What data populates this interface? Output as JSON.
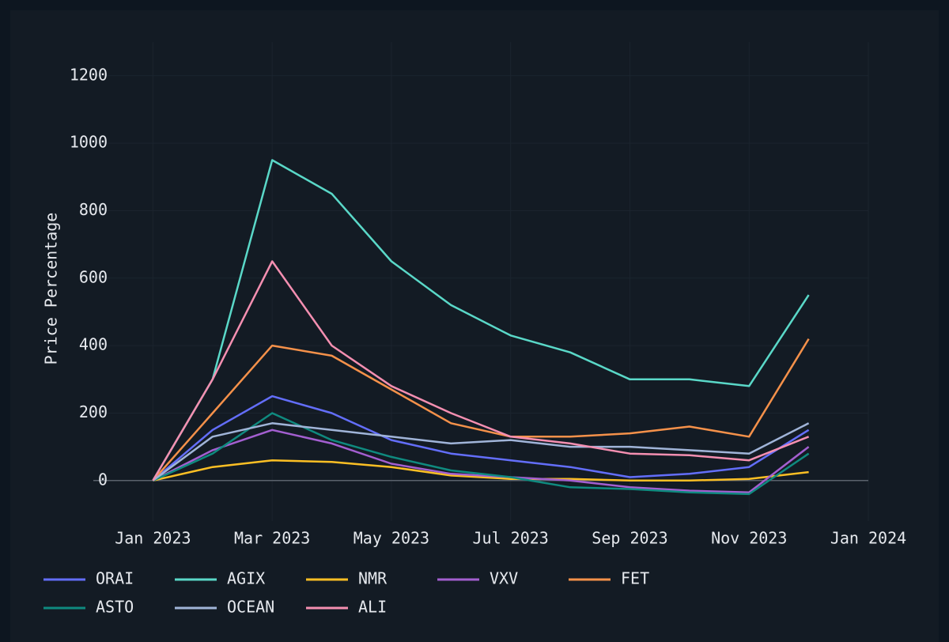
{
  "chart_data": {
    "type": "line",
    "y_label": "Price Percentage",
    "x": [
      "2023-01",
      "2023-02",
      "2023-03",
      "2023-04",
      "2023-05",
      "2023-06",
      "2023-07",
      "2023-08",
      "2023-09",
      "2023-10",
      "2023-11",
      "2023-12"
    ],
    "series": [
      {
        "name": "ORAI",
        "color": "#636efa",
        "values": [
          0,
          150,
          250,
          200,
          120,
          80,
          60,
          40,
          10,
          20,
          40,
          150
        ]
      },
      {
        "name": "AGIX",
        "color": "#5ad8c8",
        "values": [
          0,
          300,
          950,
          850,
          650,
          520,
          430,
          380,
          300,
          300,
          280,
          550
        ]
      },
      {
        "name": "NMR",
        "color": "#fbbf24",
        "values": [
          0,
          40,
          60,
          55,
          40,
          15,
          5,
          5,
          0,
          0,
          5,
          25
        ]
      },
      {
        "name": "VXV",
        "color": "#a35fd0",
        "values": [
          0,
          90,
          150,
          110,
          50,
          20,
          10,
          0,
          -20,
          -30,
          -35,
          100
        ]
      },
      {
        "name": "FET",
        "color": "#f5914a",
        "values": [
          0,
          200,
          400,
          370,
          270,
          170,
          130,
          130,
          140,
          160,
          130,
          420
        ]
      },
      {
        "name": "ASTO",
        "color": "#0f8a7f",
        "values": [
          0,
          80,
          200,
          120,
          70,
          30,
          10,
          -20,
          -25,
          -35,
          -40,
          80
        ]
      },
      {
        "name": "OCEAN",
        "color": "#a0b4d8",
        "values": [
          0,
          130,
          170,
          150,
          130,
          110,
          120,
          100,
          100,
          90,
          80,
          170
        ]
      },
      {
        "name": "ALI",
        "color": "#f48fb1",
        "values": [
          0,
          300,
          650,
          400,
          280,
          200,
          130,
          110,
          80,
          75,
          60,
          130
        ]
      }
    ],
    "xlim": [
      "2022-12",
      "2024-01"
    ],
    "xticks": [
      {
        "value": "2023-01",
        "label": "Jan 2023"
      },
      {
        "value": "2023-03",
        "label": "Mar 2023"
      },
      {
        "value": "2023-05",
        "label": "May 2023"
      },
      {
        "value": "2023-07",
        "label": "Jul 2023"
      },
      {
        "value": "2023-09",
        "label": "Sep 2023"
      },
      {
        "value": "2023-11",
        "label": "Nov 2023"
      },
      {
        "value": "2024-01",
        "label": "Jan 2024"
      }
    ],
    "ylim": [
      -120,
      1300
    ],
    "yticks": [
      0,
      200,
      400,
      600,
      800,
      1000,
      1200
    ],
    "grid": true,
    "legend": "bottom"
  }
}
